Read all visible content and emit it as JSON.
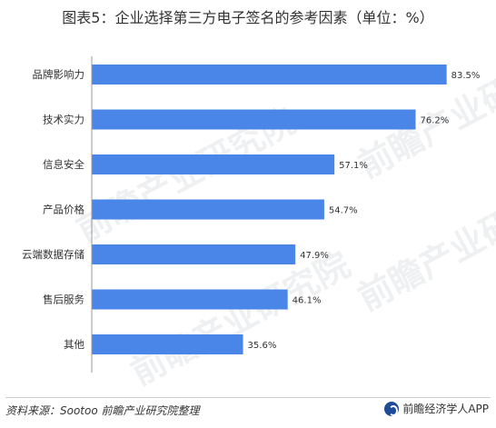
{
  "title": "图表5：企业选择第三方电子签名的参考因素（单位：%）",
  "source": "资料来源：Sootoo 前瞻产业研究院整理",
  "brand": "前瞻经济学人APP",
  "watermark": "前瞻产业研究院",
  "colors": {
    "bar": "#4a86e8",
    "text": "#333333"
  },
  "chart_data": {
    "type": "bar",
    "orientation": "horizontal",
    "title": "图表5：企业选择第三方电子签名的参考因素（单位：%）",
    "xlabel": "",
    "ylabel": "",
    "unit": "%",
    "categories": [
      "品牌影响力",
      "技术实力",
      "信息安全",
      "产品价格",
      "云端数据存储",
      "售后服务",
      "其他"
    ],
    "values": [
      83.5,
      76.2,
      57.1,
      54.7,
      47.9,
      46.1,
      35.6
    ],
    "value_labels": [
      "83.5%",
      "76.2%",
      "57.1%",
      "54.7%",
      "47.9%",
      "46.1%",
      "35.6%"
    ],
    "xlim": [
      0,
      84
    ],
    "grid": false,
    "legend": "none"
  }
}
